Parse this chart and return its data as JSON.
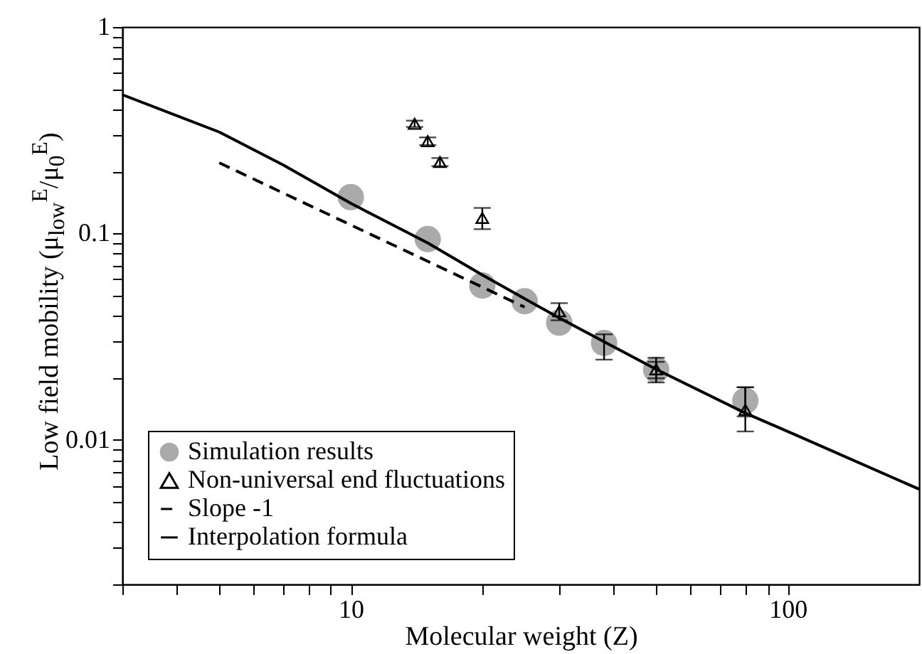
{
  "chart_data": {
    "type": "scatter",
    "xlabel": "Molecular weight (Z)",
    "ylabel": "Low field mobility (μ$_{low}$$^{E}$/μ$_{0}$$^{E}$)",
    "log": "xy",
    "grid": false,
    "legend": "bottom left",
    "xlim": [
      3,
      200
    ],
    "ylim": [
      0.002,
      1
    ],
    "xticks": [
      {
        "value": 3,
        "label": null
      },
      {
        "value": 4,
        "label": null
      },
      {
        "value": 5,
        "label": null
      },
      {
        "value": 6,
        "label": null
      },
      {
        "value": 7,
        "label": null
      },
      {
        "value": 8,
        "label": null
      },
      {
        "value": 9,
        "label": null
      },
      10,
      {
        "value": 20,
        "label": null
      },
      {
        "value": 30,
        "label": null
      },
      {
        "value": 40,
        "label": null
      },
      {
        "value": 50,
        "label": null
      },
      {
        "value": 60,
        "label": null
      },
      {
        "value": 70,
        "label": null
      },
      {
        "value": 80,
        "label": null
      },
      {
        "value": 90,
        "label": null
      },
      100
    ],
    "yticks": [
      {
        "value": 0.002,
        "label": null
      },
      {
        "value": 0.003,
        "label": null
      },
      {
        "value": 0.004,
        "label": null
      },
      {
        "value": 0.005,
        "label": null
      },
      {
        "value": 0.006,
        "label": null
      },
      {
        "value": 0.007,
        "label": null
      },
      {
        "value": 0.008,
        "label": null
      },
      {
        "value": 0.009,
        "label": null
      },
      0.01,
      {
        "value": 0.02,
        "label": null
      },
      {
        "value": 0.03,
        "label": null
      },
      {
        "value": 0.04,
        "label": null
      },
      {
        "value": 0.05,
        "label": null
      },
      {
        "value": 0.06,
        "label": null
      },
      {
        "value": 0.07,
        "label": null
      },
      {
        "value": 0.08,
        "label": null
      },
      {
        "value": 0.09,
        "label": null
      },
      0.1,
      {
        "value": 0.2,
        "label": null
      },
      {
        "value": 0.3,
        "label": null
      },
      {
        "value": 0.4,
        "label": null
      },
      {
        "value": 0.5,
        "label": null
      },
      {
        "value": 0.6,
        "label": null
      },
      {
        "value": 0.7,
        "label": null
      },
      {
        "value": 0.8,
        "label": null
      },
      {
        "value": 0.9,
        "label": null
      },
      1
    ],
    "series": [
      {
        "name": "Simulation results",
        "marker": "circle",
        "color": "#aaaaaa",
        "x": [
          10,
          15,
          20,
          25,
          30,
          38,
          50,
          80
        ],
        "values": [
          0.15,
          0.094,
          0.056,
          0.047,
          0.037,
          0.0295,
          0.0219,
          0.0155
        ],
        "errors": [
          null,
          null,
          null,
          null,
          null,
          [
            0.0245,
            0.0325
          ],
          0.002,
          0.0025
        ]
      },
      {
        "name": "Non-universal end fluctuations",
        "marker": "triangle",
        "color": "#000000",
        "x": [
          14,
          15,
          16,
          20,
          30,
          50,
          80
        ],
        "values": [
          0.34,
          0.28,
          0.222,
          0.119,
          0.042,
          0.022,
          0.014
        ],
        "errors": [
          0.012,
          0.012,
          0.01,
          0.014,
          0.004,
          0.003,
          [
            0.011,
            0.018
          ]
        ]
      },
      {
        "name": "Slope -1",
        "type": "line",
        "line_style": "dashed",
        "color": "#000000",
        "x": [
          5,
          25
        ],
        "values": [
          0.22,
          0.044
        ]
      },
      {
        "name": "Interpolation formula",
        "type": "line",
        "line_style": "solid",
        "color": "#000000",
        "x": [
          3,
          5,
          7,
          10,
          15,
          20,
          30,
          50,
          80,
          100,
          200
        ],
        "values": [
          0.47,
          0.31,
          0.215,
          0.14,
          0.09,
          0.063,
          0.039,
          0.022,
          0.0135,
          0.011,
          0.00578
        ]
      }
    ]
  }
}
